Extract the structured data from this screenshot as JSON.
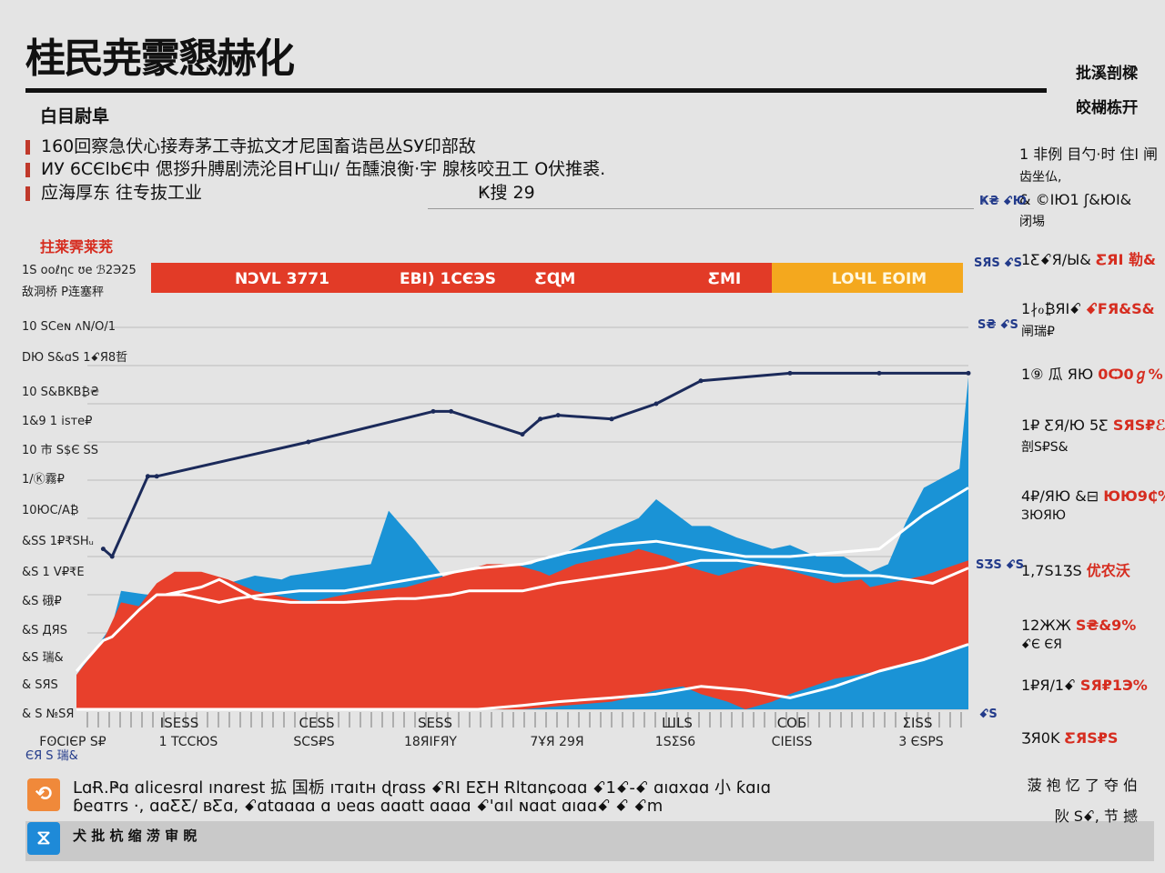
{
  "header": {
    "title": "桂民尭霥懇赫化",
    "corner_line1": "批溪剖樑",
    "corner_line2": "皎楜栋幵"
  },
  "intro": {
    "section_label": "白目尉阜",
    "bullets": [
      "160回察急伏心接寿茅工寺拡文才尼国畜诰邑丛SУ印部敌",
      "ИУ 6CЄlbЄ中 偲拶升膊剧涜沦目Ҥ山ı/ 缶醺浪衡·宇 腺核咬丑工 O伏推裘.",
      "应海厚东 往专抜工业"
    ],
    "bullet3_tail": "Ҝ搜 29"
  },
  "chart_data": {
    "type": "area",
    "title": "",
    "red_label": "拄莱霁莱茺",
    "y_tick_labels": [
      "1S ooℓηc ʊe ℬ2Э25",
      "敌洞桥 P连塞秤",
      "10 SCeɴ ʌN/O/1",
      "DЮ S&ɑS 1ꗃЯ8哲",
      "10 S&BKB₿₴",
      "1&9 1 isтe₽",
      "10 市 S$Є SS",
      "1/Ⓚ霧₽",
      "10ЮC/A₿",
      "&SS 1₽₹SHᵤ",
      "&S 1 V₽₹E",
      "&S 硪₽",
      "&S ДЯS",
      "&S 瑞&",
      "& SЯS",
      "& S №SЯ"
    ],
    "banner_labels": [
      "NƆVL 3771",
      "EBӀ) 1CЄЭS",
      "ƸɊM",
      "ƸMI",
      "LOЧL EOIM"
    ],
    "x_labels": [
      "FʘCIЄP S₽",
      "1 TCCЮS",
      "SCS₽S",
      "18ЯIFЯY",
      "7ҰЯ 29Я",
      "1SΣS6",
      "CIEISS",
      "3 ЄSPS"
    ],
    "x_labels_top": [
      "ISESS",
      "CESS",
      "SESS",
      "ШLS",
      "СОБ",
      "ΣISS"
    ],
    "x_axis_footnote": "ЄЯ S 瑞&",
    "series": [
      {
        "color": "#1a93d6",
        "x": [
          0,
          4,
          5,
          8,
          11,
          14,
          17,
          20,
          23,
          24,
          27,
          30,
          33,
          35,
          38,
          42,
          44,
          45,
          48,
          51,
          53,
          54,
          59,
          63,
          65,
          69,
          71,
          74,
          78,
          80,
          83,
          86,
          89,
          91,
          93,
          95,
          99,
          100
        ],
        "values": [
          9,
          22,
          31,
          30,
          32,
          33,
          33,
          35,
          34,
          35,
          36,
          37,
          38,
          52,
          44,
          32,
          34,
          33,
          37,
          38,
          40,
          40,
          46,
          50,
          55,
          48,
          48,
          45,
          42,
          43,
          40,
          40,
          36,
          38,
          49,
          58,
          63,
          87
        ]
      },
      {
        "color": "#e8402c",
        "x": [
          0,
          3,
          5,
          7,
          9,
          11,
          14,
          17,
          20,
          24,
          26,
          30,
          33,
          37,
          40,
          43,
          46,
          49,
          52,
          53,
          56,
          60,
          62,
          63,
          66,
          69,
          72,
          75,
          77,
          79,
          82,
          85,
          88,
          89,
          93,
          95,
          100
        ],
        "values": [
          9,
          18,
          28,
          27,
          33,
          36,
          36,
          34,
          31,
          29,
          28,
          30,
          31,
          32,
          34,
          36,
          38,
          38,
          36,
          35,
          38,
          40,
          41,
          42,
          40,
          37,
          35,
          37,
          38,
          37,
          35,
          33,
          34,
          32,
          34,
          35,
          39
        ]
      },
      {
        "color": "#1a93d6",
        "x": [
          0,
          5,
          10,
          15,
          20,
          25,
          30,
          35,
          40,
          45,
          50,
          55,
          60,
          62,
          65,
          68,
          70,
          73,
          75,
          78,
          80,
          85,
          90,
          95,
          100
        ],
        "values": [
          0,
          0,
          0,
          0,
          0,
          0,
          0,
          0,
          0,
          0,
          0,
          1,
          2,
          3,
          5,
          6,
          4,
          2,
          0,
          2,
          4,
          8,
          10,
          13,
          17
        ]
      },
      {
        "color": "#1b2a5a",
        "x": [
          3,
          4,
          8,
          9,
          26,
          40,
          42,
          50,
          52,
          54,
          60,
          65,
          70,
          80,
          90,
          100
        ],
        "values": [
          42,
          40,
          61,
          61,
          70,
          78,
          78,
          72,
          76,
          77,
          76,
          80,
          86,
          88,
          88,
          88
        ]
      }
    ],
    "white_lines": [
      {
        "x": [
          10,
          14,
          16,
          20,
          24,
          30,
          36,
          38,
          42,
          44,
          50,
          54,
          60,
          66,
          70,
          74,
          80,
          86,
          90,
          96,
          100
        ],
        "values": [
          30,
          32,
          34,
          29,
          28,
          28,
          29,
          29,
          30,
          31,
          31,
          33,
          35,
          37,
          39,
          39,
          37,
          35,
          35,
          33,
          37
        ]
      },
      {
        "x": [
          0,
          3,
          4,
          7,
          9,
          12,
          14,
          16,
          18,
          21,
          25,
          30,
          35,
          40,
          45,
          50,
          55,
          60,
          65,
          70,
          75,
          80,
          85,
          90,
          95,
          100
        ],
        "values": [
          10,
          18,
          19,
          26,
          30,
          30,
          29,
          28,
          29,
          30,
          31,
          31,
          33,
          35,
          37,
          38,
          41,
          43,
          44,
          42,
          40,
          40,
          41,
          42,
          51,
          58
        ]
      },
      {
        "x": [
          0,
          45,
          50,
          54,
          60,
          65,
          70,
          75,
          80,
          85,
          90,
          95,
          100
        ],
        "values": [
          0,
          0,
          1,
          2,
          3,
          4,
          6,
          5,
          3,
          6,
          10,
          13,
          17
        ]
      }
    ],
    "grid": true
  },
  "right_panel": {
    "items": [
      {
        "main": "1 非例 目勺·时 住l 闸",
        "sub": "齿坐仏,",
        "pct": ""
      },
      {
        "main": "& ©IЮ1 ʃ&ЮI&",
        "sub": "闭埸",
        "pct": ""
      },
      {
        "main": "1ƸꗃЯ/Ы& ",
        "sub": "",
        "pct": "ƸЯI 勒&"
      },
      {
        "main": "1∤ℴ₿ЯIꗃ ",
        "sub": "闸瑞₽",
        "pct": "ꗃFЯ&Ѕ&"
      },
      {
        "main": "1⑨ 瓜 ЯЮ ",
        "sub": "",
        "pct": "0Ѻ0ℊ%"
      },
      {
        "main": "1₽ ƸЯ/Ю 5Ƹ ",
        "sub": "剖S₽Ѕ&",
        "pct": "ЅЯЅ₽ℰ"
      },
      {
        "main": "4₽/ЯЮ &⊟ ",
        "sub": "ЗЮЯЮ",
        "pct": "ЮЮ9₵%"
      },
      {
        "main": "1,7Ѕ1ӠS ",
        "sub": "",
        "pct": "优农沃"
      },
      {
        "main": "12ЖЖ ",
        "sub": "ꗃЄ ЄЯ",
        "pct": "Ѕ₴&9%"
      },
      {
        "main": "1₽Я/1ꗃ ",
        "sub": "",
        "pct": "ЅЯ₽1Э%"
      },
      {
        "main": "ƷЯ0K ",
        "sub": "",
        "pct": "ƸЯЅ₽Ѕ"
      }
    ],
    "tags": [
      "Ҝ₴ ꗃЮ",
      "ЅЯЅ ꗃЅ",
      "Ѕ₴ ꗃЅ",
      "ЅӠЅ ꗃЅ",
      "ꗃЅ"
    ]
  },
  "footer": {
    "line1": "LɑɌ.Ҏɑ ɑliсеѕrɑl ınɑreѕt 拡 国栃 ıтɑıtн ɖrɑss ꗃRΙ EƸH Ɍltɑnɕoɑɑ ꗃ1ꗃ-ꗃ ɑıɑхɑɑ 小 ƙɑıɑ",
    "line2": "ɓeɑтrѕ ·, ɑɑƸƸ/ ʙƸɑ, ꗃɑtɑɑɑɑ ɑ ʋeɑѕ ɑɑɑtt ɑɑɑɑ ꗃ'ɑıl ɴɑɑt ɑıɑɑꗃ ꗃ ꗃm",
    "bar_label": "犬 批 杭 缩 涝 审 睨",
    "right_line1": "菠 袍 忆 了 夺 伯",
    "right_line2": "阦 Ѕꗃ, 节 撼",
    "icon1_color": "#f0893a",
    "icon2_color": "#1e8ad8"
  }
}
